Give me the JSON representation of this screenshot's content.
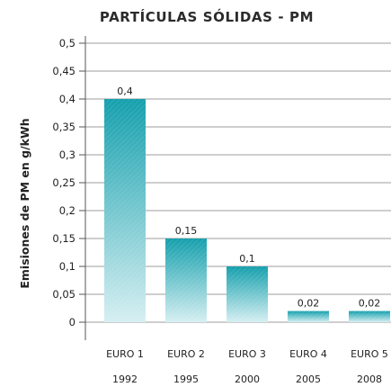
{
  "chart_data": {
    "type": "bar",
    "title": "PARTÍCULAS SÓLIDAS  - PM",
    "ylabel": "Emisiones de PM en g/kWh",
    "xlabel": "",
    "categories": [
      "EURO 1",
      "EURO 2",
      "EURO 3",
      "EURO 4",
      "EURO 5"
    ],
    "years": [
      "1992",
      "1995",
      "2000",
      "2005",
      "2008"
    ],
    "values": [
      0.4,
      0.15,
      0.1,
      0.02,
      0.02
    ],
    "value_labels": [
      "0,4",
      "0,15",
      "0,1",
      "0,02",
      "0,02"
    ],
    "yticks": [
      0,
      0.05,
      0.1,
      0.15,
      0.2,
      0.25,
      0.3,
      0.35,
      0.4,
      0.45,
      0.5
    ],
    "ytick_labels": [
      "0",
      "0,05",
      "0,1",
      "0,15",
      "0,2",
      "0,25",
      "0,3",
      "0,35",
      "0,4",
      "0,45",
      "0,5"
    ],
    "ylim": [
      0,
      0.5
    ],
    "grid": true,
    "legend": "none",
    "colors": {
      "bar_top": "#16a0ad",
      "bar_bottom": "#d6eff2",
      "grid": "#9e9e9e",
      "text": "#222222"
    }
  }
}
